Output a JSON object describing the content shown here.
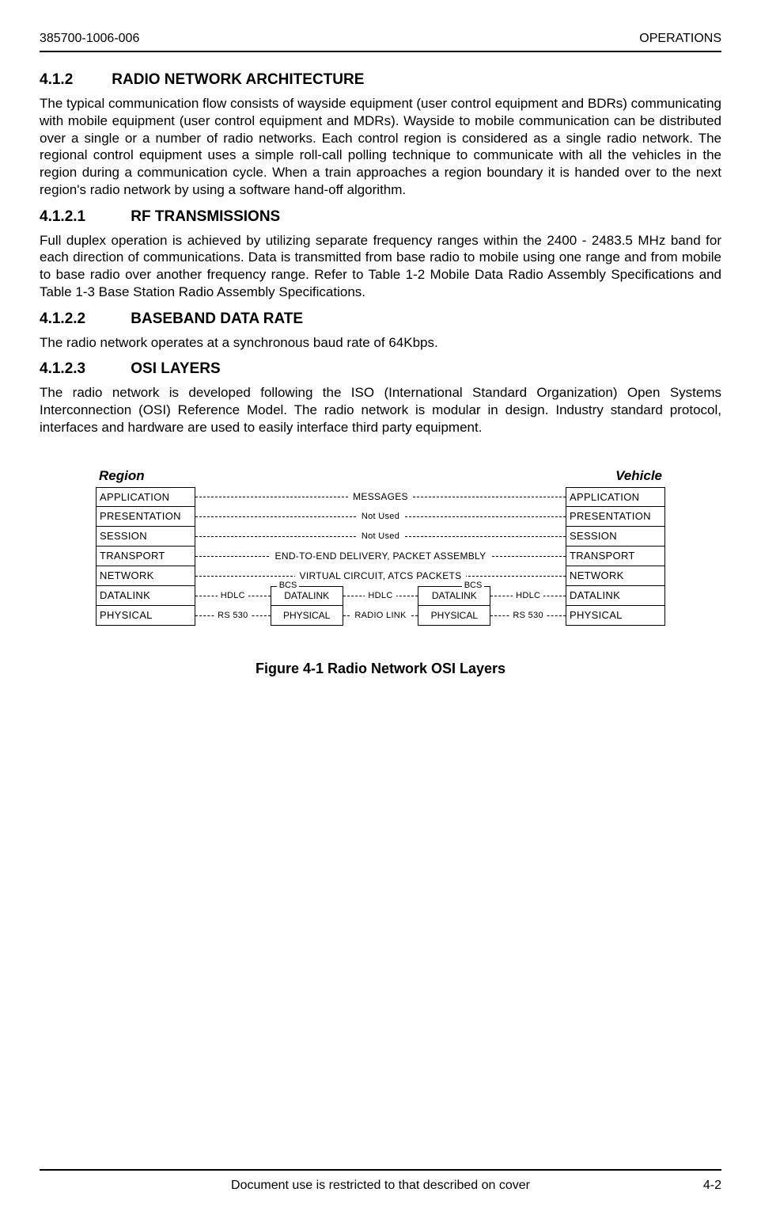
{
  "header": {
    "left": "385700-1006-006",
    "right": "OPERATIONS"
  },
  "sections": {
    "s412": {
      "num": "4.1.2",
      "title": "RADIO NETWORK ARCHITECTURE",
      "body": "The typical communication flow consists of wayside equipment (user  control equipment and BDRs) communicating with mobile equipment  (user control equipment and MDRs).  Wayside to mobile communication can be distributed over a single or a number of radio networks. Each control region is considered as a single radio network. The regional control equipment uses a simple roll-call polling technique to communicate with all the vehicles in the region during a communication cycle. When a train approaches a region boundary it is handed over to the next region's radio network by using a software hand-off algorithm."
    },
    "s4121": {
      "num": "4.1.2.1",
      "title": "RF TRANSMISSIONS",
      "body": "Full duplex operation is achieved by utilizing separate frequency ranges within the 2400 - 2483.5 MHz band for each direction of communications. Data is transmitted from base radio to mobile using one range and from mobile to base radio over another frequency range.  Refer to Table 1-2 Mobile Data Radio Assembly Specifications and Table 1-3 Base Station Radio Assembly Specifications."
    },
    "s4122": {
      "num": "4.1.2.2",
      "title": "BASEBAND DATA RATE",
      "body": "The radio network operates at a synchronous baud rate of 64Kbps."
    },
    "s4123": {
      "num": "4.1.2.3",
      "title": "OSI LAYERS",
      "body": "The radio network is developed following the ISO (International Standard Organization) Open Systems Interconnection (OSI) Reference Model. The radio network is modular in design. Industry standard protocol, interfaces and hardware are used to easily interface third party equipment."
    }
  },
  "diagram": {
    "title_left": "Region",
    "title_right": "Vehicle",
    "layers": [
      "APPLICATION",
      "PRESENTATION",
      "SESSION",
      "TRANSPORT",
      "NETWORK",
      "DATALINK",
      "PHYSICAL"
    ],
    "mids": [
      "MESSAGES",
      "Not Used",
      "Not Used",
      "END-TO-END DELIVERY, PACKET ASSEMBLY",
      "VIRTUAL CIRCUIT, ATCS PACKETS"
    ],
    "bcs": "BCS",
    "inner_top": "DATALINK",
    "inner_bot": "PHYSICAL",
    "hdlc": "HDLC",
    "rs530": "RS 530",
    "radio": "RADIO LINK"
  },
  "figure_caption": "Figure 4-1  Radio Network OSI Layers",
  "footer": {
    "center": "Document use is restricted to that described on cover",
    "right": "4-2"
  }
}
